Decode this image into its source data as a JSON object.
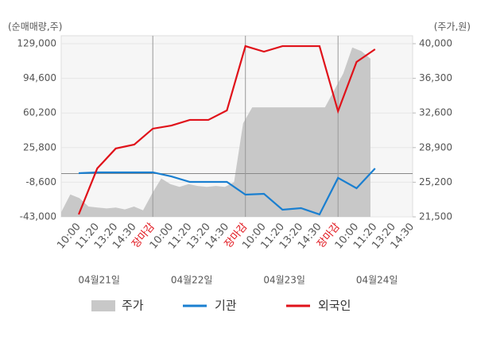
{
  "chart_data": {
    "type": "line",
    "y_label": "(순매매량,주)",
    "y2_label": "(주가,원)",
    "categories": [
      "10:00",
      "11:20",
      "13:20",
      "14:30",
      "장마감",
      "10:00",
      "11:20",
      "13:20",
      "14:30",
      "장마감",
      "10:00",
      "11:20",
      "13:20",
      "14:30",
      "장마감",
      "10:00",
      "11:20",
      "13:20",
      "14:30"
    ],
    "dates": [
      "04월21일",
      "04월22일",
      "04월23일",
      "04월24일"
    ],
    "ylim": [
      -43000,
      129000
    ],
    "yticks": [
      {
        "value": 129000,
        "label": "129,000"
      },
      {
        "value": 94600,
        "label": "94,600"
      },
      {
        "value": 60200,
        "label": "60,200"
      },
      {
        "value": 25800,
        "label": "25,800"
      },
      {
        "value": -8600,
        "label": "-8,600"
      },
      {
        "value": -43000,
        "label": "-43,000"
      }
    ],
    "y2lim": [
      21500,
      40000
    ],
    "y2ticks": [
      {
        "value": 40000,
        "label": "40,000"
      },
      {
        "value": 36300,
        "label": "36,300"
      },
      {
        "value": 32600,
        "label": "32,600"
      },
      {
        "value": 28900,
        "label": "28,900"
      },
      {
        "value": 25200,
        "label": "25,200"
      },
      {
        "value": 21500,
        "label": "21,500"
      }
    ],
    "price": {
      "name": "주가",
      "color": "#c8c8c8",
      "axis": "y2",
      "values": [
        22000,
        23900,
        23500,
        22600,
        22500,
        22400,
        22500,
        22300,
        22600,
        22200,
        24000,
        25600,
        25000,
        24700,
        25000,
        24800,
        24700,
        24800,
        24700,
        25200,
        31500,
        33200,
        33200,
        33200,
        33200,
        33200,
        33200,
        33200,
        33200,
        33200,
        35000,
        36800,
        39600,
        39200,
        38400
      ]
    },
    "series": [
      {
        "name": "기관",
        "color": "#1a7fd0",
        "values": [
          400,
          1200,
          1200,
          1200,
          1200,
          -2800,
          -8300,
          -8300,
          -8300,
          -20900,
          -20100,
          -35900,
          -34300,
          -40600,
          -4300,
          -14600,
          5100,
          null,
          null
        ]
      },
      {
        "name": "외국인",
        "color": "#e0121a",
        "values": [
          -40600,
          5100,
          24900,
          28800,
          44600,
          47700,
          53300,
          53300,
          62700,
          126600,
          121100,
          126600,
          126600,
          126600,
          61900,
          110900,
          123500,
          null,
          null
        ]
      }
    ]
  }
}
